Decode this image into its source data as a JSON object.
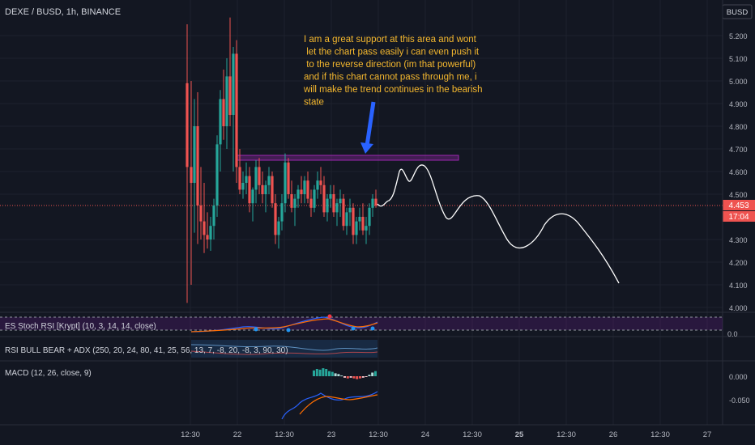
{
  "header": {
    "symbol": "DEXE / BUSD, 1h, BINANCE",
    "currency_button": "BUSD"
  },
  "annotation": {
    "lines": [
      "I am a great support at this area and wont",
      " let the chart pass easily i can even push it",
      " to the reverse direction (im that powerful)",
      "and if this chart cannot pass through me, i",
      "will make the trend continues in the bearish",
      "state"
    ],
    "color": "#f5b82e"
  },
  "price_tag": {
    "value": "4.453",
    "countdown": "17:04",
    "color": "#ef5350"
  },
  "indicators": {
    "stoch_rsi": "ES Stoch RSI [Krypt] (10, 3, 14, 14, close)",
    "rsi_bull_bear": "RSI BULL BEAR + ADX (250, 20, 24, 80, 41, 25, 56, 13, 7, -8, 20, -8, 3, 90, 30)",
    "macd": "MACD (12, 26, close, 9)"
  },
  "colors": {
    "up": "#26a69a",
    "down": "#ef5350",
    "zone": "#9c27b0",
    "arrow": "#2962ff",
    "projection": "#ffffff"
  },
  "chart_data": {
    "type": "candlestick",
    "price_axis": {
      "ticks": [
        "5.200",
        "5.100",
        "5.000",
        "4.900",
        "4.800",
        "4.700",
        "4.600",
        "4.500",
        "4.300",
        "4.200",
        "4.100",
        "4.000"
      ],
      "ylim": [
        4.0,
        5.2
      ]
    },
    "time_axis": {
      "ticks": [
        "12:30",
        "22",
        "12:30",
        "23",
        "12:30",
        "24",
        "12:30",
        "25",
        "12:30",
        "26",
        "12:30",
        "27"
      ]
    },
    "last_price": 4.453,
    "resistance_zone": [
      4.66,
      4.68
    ],
    "stoch_axis": [
      "0.0"
    ],
    "macd_axis": [
      "0.000",
      "-0.050"
    ]
  }
}
